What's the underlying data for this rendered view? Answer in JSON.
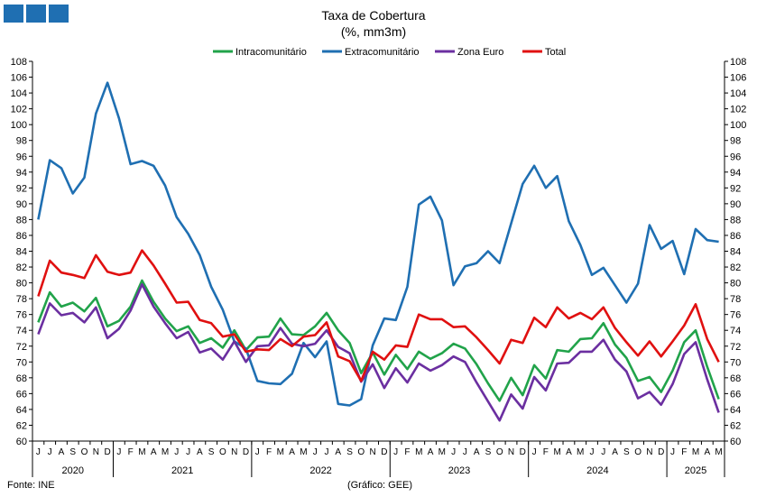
{
  "chart_data": {
    "type": "line",
    "title": "Taxa de Cobertura",
    "subtitle": "(%, mm3m)",
    "ylim": [
      60,
      108
    ],
    "ytick_step": 2,
    "grid": false,
    "legend_position": "top-center",
    "month_labels": [
      "J",
      "J",
      "A",
      "S",
      "O",
      "N",
      "D",
      "J",
      "F",
      "M",
      "A",
      "M",
      "J",
      "J",
      "A",
      "S",
      "O",
      "N",
      "D",
      "J",
      "F",
      "M",
      "A",
      "M",
      "J",
      "J",
      "A",
      "S",
      "O",
      "N",
      "D",
      "J",
      "F",
      "M",
      "A",
      "M",
      "J",
      "J",
      "A",
      "S",
      "O",
      "N",
      "D",
      "J",
      "F",
      "M",
      "A",
      "M",
      "J",
      "J",
      "A",
      "S",
      "O",
      "N",
      "D",
      "J",
      "F",
      "M",
      "A",
      "M"
    ],
    "years": [
      {
        "label": "2020",
        "start": 0,
        "count": 7
      },
      {
        "label": "2021",
        "start": 7,
        "count": 12
      },
      {
        "label": "2022",
        "start": 19,
        "count": 12
      },
      {
        "label": "2023",
        "start": 31,
        "count": 12
      },
      {
        "label": "2024",
        "start": 43,
        "count": 12
      },
      {
        "label": "2025",
        "start": 55,
        "count": 5
      }
    ],
    "series": [
      {
        "name": "Intracomunitário",
        "color": "#21a34a",
        "values": [
          75.0,
          78.8,
          77.0,
          77.5,
          76.4,
          78.1,
          74.5,
          75.2,
          77.0,
          80.3,
          77.6,
          75.5,
          73.9,
          74.5,
          72.4,
          73.0,
          71.8,
          74.0,
          71.5,
          73.1,
          73.2,
          75.5,
          73.5,
          73.4,
          74.5,
          76.2,
          74.0,
          72.4,
          68.6,
          71.2,
          68.4,
          70.9,
          69.1,
          71.3,
          70.4,
          71.1,
          72.3,
          71.7,
          69.7,
          67.3,
          65.1,
          68.0,
          65.8,
          69.6,
          67.9,
          71.5,
          71.3,
          72.9,
          73.0,
          74.9,
          72.2,
          70.5,
          67.6,
          68.1,
          66.2,
          68.9,
          72.5,
          74.0,
          69.4,
          65.3
        ]
      },
      {
        "name": "Extracomunitário",
        "color": "#1f6fb2",
        "values": [
          88.0,
          95.5,
          94.5,
          91.3,
          93.3,
          101.4,
          105.3,
          100.8,
          95.0,
          95.4,
          94.8,
          92.3,
          88.3,
          86.2,
          83.5,
          79.5,
          76.6,
          72.6,
          71.7,
          67.6,
          67.3,
          67.2,
          68.5,
          72.4,
          70.6,
          72.6,
          64.7,
          64.5,
          65.3,
          72.1,
          75.5,
          75.3,
          79.5,
          89.9,
          90.9,
          87.9,
          79.7,
          82.1,
          82.5,
          84.0,
          82.5,
          87.5,
          92.5,
          94.8,
          92.0,
          93.5,
          87.8,
          84.8,
          81.0,
          81.9,
          79.7,
          77.5,
          79.9,
          87.3,
          84.3,
          85.3,
          81.1,
          86.8,
          85.4,
          85.2
        ]
      },
      {
        "name": "Zona Euro",
        "color": "#6b2fa0",
        "values": [
          73.5,
          77.4,
          75.9,
          76.2,
          75.0,
          76.9,
          73.0,
          74.2,
          76.5,
          79.8,
          77.0,
          74.9,
          73.0,
          73.8,
          71.2,
          71.7,
          70.3,
          72.6,
          70.0,
          72.0,
          72.1,
          74.3,
          72.3,
          72.0,
          72.3,
          74.0,
          71.9,
          71.1,
          67.5,
          69.7,
          66.7,
          69.2,
          67.4,
          69.8,
          68.9,
          69.6,
          70.7,
          70.0,
          67.4,
          65.0,
          62.6,
          65.9,
          64.1,
          68.1,
          66.4,
          69.8,
          69.9,
          71.3,
          71.3,
          72.8,
          70.3,
          68.8,
          65.4,
          66.2,
          64.6,
          67.2,
          71.0,
          72.5,
          67.8,
          63.6
        ]
      },
      {
        "name": "Total",
        "color": "#e01010",
        "values": [
          78.3,
          82.8,
          81.3,
          81.0,
          80.6,
          83.5,
          81.4,
          81.0,
          81.3,
          84.1,
          82.2,
          79.9,
          77.5,
          77.6,
          75.3,
          74.9,
          73.2,
          73.5,
          71.3,
          71.6,
          71.5,
          72.9,
          72.0,
          73.2,
          73.4,
          75.0,
          70.7,
          70.1,
          67.6,
          71.3,
          70.3,
          72.1,
          71.9,
          76.0,
          75.4,
          75.4,
          74.4,
          74.5,
          73.1,
          71.5,
          69.8,
          72.8,
          72.4,
          75.6,
          74.4,
          76.9,
          75.5,
          76.2,
          75.4,
          76.9,
          74.3,
          72.5,
          70.8,
          72.6,
          70.7,
          72.6,
          74.6,
          77.3,
          72.9,
          70.0
        ]
      }
    ]
  },
  "footer": {
    "source": "Fonte: INE",
    "credit": "(Gráfico: GEE)"
  },
  "logo": {
    "color": "#1f6fb2"
  }
}
